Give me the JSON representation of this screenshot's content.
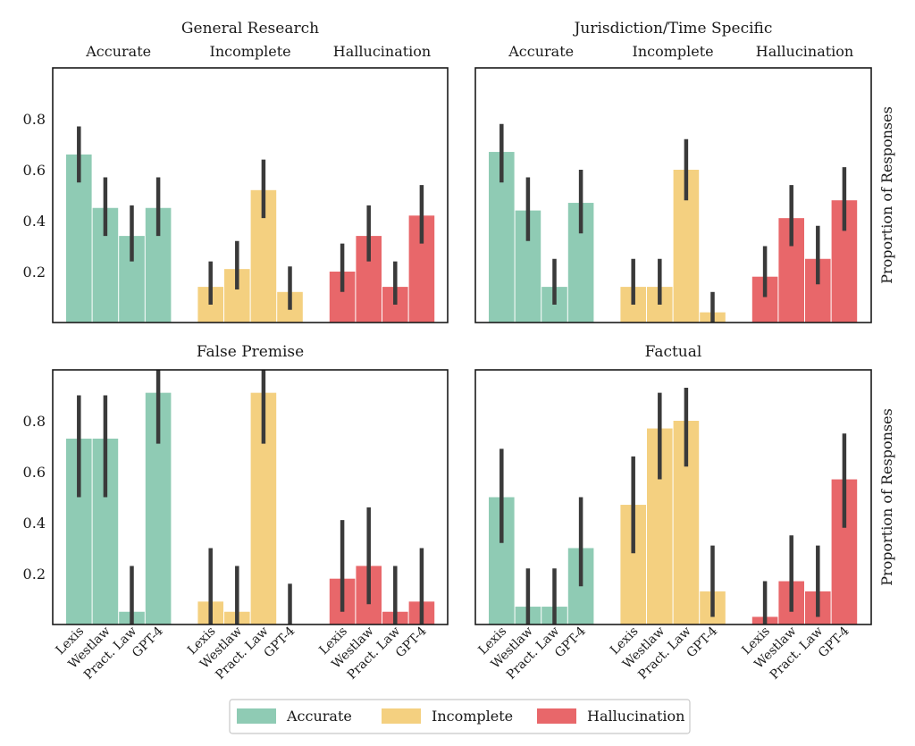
{
  "colors": {
    "accurate": "#8fcbb4",
    "incomplete": "#f4d080",
    "hallucination": "#e8676a",
    "error_bar": "#3a3a3a"
  },
  "legend": [
    "Accurate",
    "Incomplete",
    "Hallucination"
  ],
  "ylabel": "Proportion of Responses",
  "group_titles": [
    "Accurate",
    "Incomplete",
    "Hallucination"
  ],
  "tool_labels": [
    "Lexis",
    "Westlaw",
    "Pract. Law",
    "GPT-4"
  ],
  "chart_data": [
    {
      "type": "bar",
      "title": "General Research",
      "ylim": [
        0,
        1.0
      ],
      "yticks": [
        "0.2",
        "0.4",
        "0.6",
        "0.8"
      ],
      "categories": [
        "Lexis",
        "Westlaw",
        "Pract. Law",
        "GPT-4"
      ],
      "series": [
        {
          "name": "Accurate",
          "values": [
            0.66,
            0.45,
            0.34,
            0.45
          ],
          "err_low": [
            0.55,
            0.34,
            0.24,
            0.34
          ],
          "err_high": [
            0.77,
            0.57,
            0.46,
            0.57
          ]
        },
        {
          "name": "Incomplete",
          "values": [
            0.14,
            0.21,
            0.52,
            0.12
          ],
          "err_low": [
            0.07,
            0.13,
            0.41,
            0.05
          ],
          "err_high": [
            0.24,
            0.32,
            0.64,
            0.22
          ]
        },
        {
          "name": "Hallucination",
          "values": [
            0.2,
            0.34,
            0.14,
            0.42
          ],
          "err_low": [
            0.12,
            0.24,
            0.07,
            0.31
          ],
          "err_high": [
            0.31,
            0.46,
            0.24,
            0.54
          ]
        }
      ]
    },
    {
      "type": "bar",
      "title": "Jurisdiction/Time Specific",
      "ylim": [
        0,
        1.0
      ],
      "yticks": [
        "0.2",
        "0.4",
        "0.6",
        "0.8"
      ],
      "categories": [
        "Lexis",
        "Westlaw",
        "Pract. Law",
        "GPT-4"
      ],
      "series": [
        {
          "name": "Accurate",
          "values": [
            0.67,
            0.44,
            0.14,
            0.47
          ],
          "err_low": [
            0.55,
            0.32,
            0.07,
            0.35
          ],
          "err_high": [
            0.78,
            0.57,
            0.25,
            0.6
          ]
        },
        {
          "name": "Incomplete",
          "values": [
            0.14,
            0.14,
            0.6,
            0.04
          ],
          "err_low": [
            0.07,
            0.07,
            0.48,
            0.0
          ],
          "err_high": [
            0.25,
            0.25,
            0.72,
            0.12
          ]
        },
        {
          "name": "Hallucination",
          "values": [
            0.18,
            0.41,
            0.25,
            0.48
          ],
          "err_low": [
            0.1,
            0.3,
            0.15,
            0.36
          ],
          "err_high": [
            0.3,
            0.54,
            0.38,
            0.61
          ]
        }
      ]
    },
    {
      "type": "bar",
      "title": "False Premise",
      "ylim": [
        0,
        1.0
      ],
      "yticks": [
        "0.2",
        "0.4",
        "0.6",
        "0.8"
      ],
      "categories": [
        "Lexis",
        "Westlaw",
        "Pract. Law",
        "GPT-4"
      ],
      "series": [
        {
          "name": "Accurate",
          "values": [
            0.73,
            0.73,
            0.05,
            0.91
          ],
          "err_low": [
            0.5,
            0.5,
            0.0,
            0.71
          ],
          "err_high": [
            0.9,
            0.9,
            0.23,
            1.0
          ]
        },
        {
          "name": "Incomplete",
          "values": [
            0.09,
            0.05,
            0.91,
            0.0
          ],
          "err_low": [
            0.0,
            0.0,
            0.71,
            0.0
          ],
          "err_high": [
            0.3,
            0.23,
            1.0,
            0.16
          ]
        },
        {
          "name": "Hallucination",
          "values": [
            0.18,
            0.23,
            0.05,
            0.09
          ],
          "err_low": [
            0.05,
            0.08,
            0.0,
            0.0
          ],
          "err_high": [
            0.41,
            0.46,
            0.23,
            0.3
          ]
        }
      ]
    },
    {
      "type": "bar",
      "title": "Factual",
      "ylim": [
        0,
        1.0
      ],
      "yticks": [
        "0.2",
        "0.4",
        "0.6",
        "0.8"
      ],
      "categories": [
        "Lexis",
        "Westlaw",
        "Pract. Law",
        "GPT-4"
      ],
      "series": [
        {
          "name": "Accurate",
          "values": [
            0.5,
            0.07,
            0.07,
            0.3
          ],
          "err_low": [
            0.32,
            0.0,
            0.0,
            0.15
          ],
          "err_high": [
            0.69,
            0.22,
            0.22,
            0.5
          ]
        },
        {
          "name": "Incomplete",
          "values": [
            0.47,
            0.77,
            0.8,
            0.13
          ],
          "err_low": [
            0.28,
            0.57,
            0.62,
            0.03
          ],
          "err_high": [
            0.66,
            0.91,
            0.93,
            0.31
          ]
        },
        {
          "name": "Hallucination",
          "values": [
            0.03,
            0.17,
            0.13,
            0.57
          ],
          "err_low": [
            0.0,
            0.05,
            0.03,
            0.38
          ],
          "err_high": [
            0.17,
            0.35,
            0.31,
            0.75
          ]
        }
      ]
    }
  ]
}
